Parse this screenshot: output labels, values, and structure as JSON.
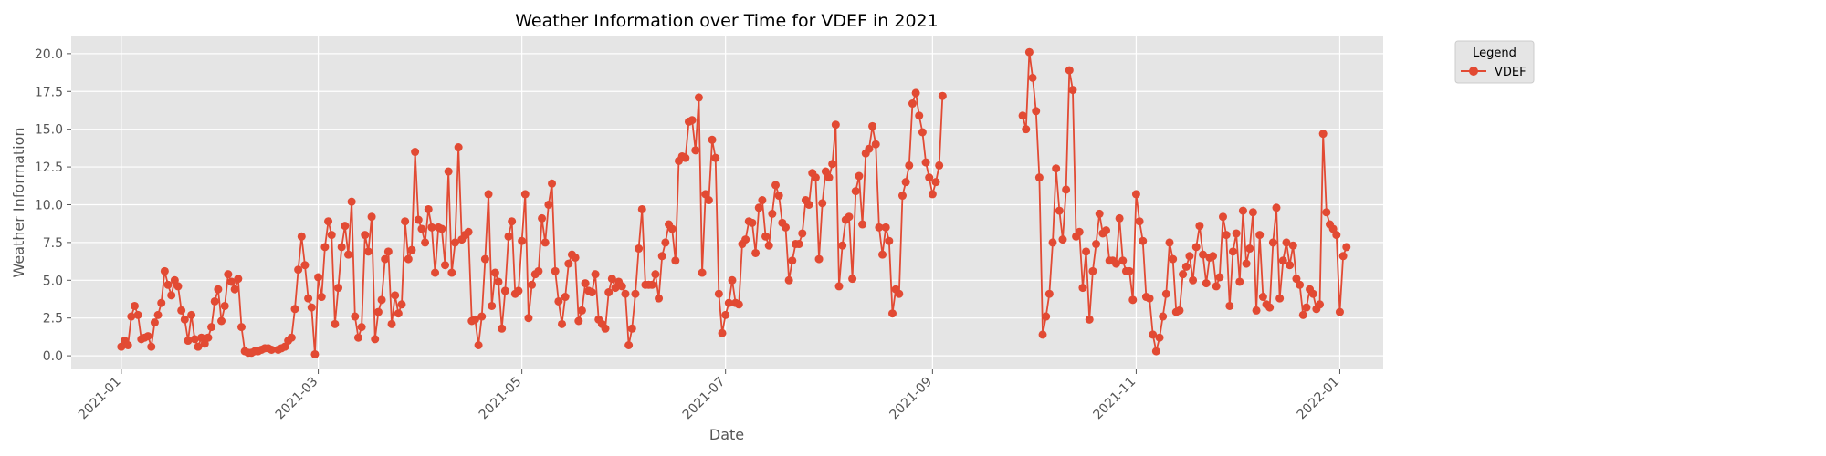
{
  "chart_data": {
    "type": "line",
    "title": "Weather Information over Time for VDEF in 2021",
    "xlabel": "Date",
    "ylabel": "Weather Information",
    "xlim": [
      "2020-12-17",
      "2022-01-14"
    ],
    "ylim": [
      -0.9,
      21.2
    ],
    "x_ticks": [
      "2021-01-01",
      "2021-03-01",
      "2021-05-01",
      "2021-07-01",
      "2021-09-01",
      "2021-11-01",
      "2022-01-01"
    ],
    "x_tick_labels": [
      "2021-01",
      "2021-03",
      "2021-05",
      "2021-07",
      "2021-09",
      "2021-11",
      "2022-01"
    ],
    "y_ticks": [
      0.0,
      2.5,
      5.0,
      7.5,
      10.0,
      12.5,
      15.0,
      17.5,
      20.0
    ],
    "y_tick_labels": [
      "0.0",
      "2.5",
      "5.0",
      "7.5",
      "10.0",
      "12.5",
      "15.0",
      "17.5",
      "20.0"
    ],
    "grid": true,
    "legend_title": "Legend",
    "legend_placement": "outside-top-right",
    "series": [
      {
        "name": "VDEF",
        "color": "#E24A33",
        "marker": "circle",
        "start_date": "2021-01-01",
        "values": [
          0.6,
          1.0,
          0.7,
          2.6,
          3.3,
          2.7,
          1.1,
          1.2,
          1.3,
          0.6,
          2.2,
          2.7,
          3.5,
          5.6,
          4.7,
          4.0,
          5.0,
          4.6,
          3.0,
          2.4,
          1.0,
          2.7,
          1.1,
          0.6,
          1.2,
          0.8,
          1.2,
          1.9,
          3.6,
          4.4,
          2.3,
          3.3,
          5.4,
          4.9,
          4.4,
          5.1,
          1.9,
          0.3,
          0.2,
          0.2,
          0.3,
          0.3,
          0.4,
          0.5,
          0.5,
          0.4,
          null,
          0.4,
          0.5,
          0.6,
          1.0,
          1.2,
          3.1,
          5.7,
          7.9,
          6.0,
          3.8,
          3.2,
          0.1,
          5.2,
          3.9,
          7.2,
          8.9,
          8.0,
          2.1,
          4.5,
          7.2,
          8.6,
          6.7,
          10.2,
          2.6,
          1.2,
          1.9,
          8.0,
          6.9,
          9.2,
          1.1,
          2.9,
          3.7,
          6.4,
          6.9,
          2.1,
          4.0,
          2.8,
          3.4,
          8.9,
          6.4,
          7.0,
          13.5,
          9.0,
          8.4,
          7.5,
          9.7,
          8.5,
          5.5,
          8.5,
          8.4,
          6.0,
          12.2,
          5.5,
          7.5,
          13.8,
          7.7,
          8.0,
          8.2,
          2.3,
          2.4,
          0.7,
          2.6,
          6.4,
          10.7,
          3.3,
          5.5,
          4.9,
          1.8,
          4.3,
          7.9,
          8.9,
          4.1,
          4.3,
          7.6,
          10.7,
          2.5,
          4.7,
          5.4,
          5.6,
          9.1,
          7.5,
          10.0,
          11.4,
          5.6,
          3.6,
          2.1,
          3.9,
          6.1,
          6.7,
          6.5,
          2.3,
          3.0,
          4.8,
          4.3,
          4.2,
          5.4,
          2.4,
          2.1,
          1.8,
          4.2,
          5.1,
          4.5,
          4.9,
          4.6,
          4.1,
          0.7,
          1.8,
          4.1,
          7.1,
          9.7,
          4.7,
          4.7,
          4.7,
          5.4,
          3.8,
          6.6,
          7.5,
          8.7,
          8.4,
          6.3,
          12.9,
          13.2,
          13.1,
          15.5,
          15.6,
          13.6,
          17.1,
          5.5,
          10.7,
          10.3,
          14.3,
          13.1,
          4.1,
          1.5,
          2.7,
          3.5,
          5.0,
          3.5,
          3.4,
          7.4,
          7.7,
          8.9,
          8.8,
          6.8,
          9.8,
          10.3,
          7.9,
          7.3,
          9.4,
          11.3,
          10.6,
          8.8,
          8.5,
          5.0,
          6.3,
          7.4,
          7.4,
          8.1,
          10.3,
          10.0,
          12.1,
          11.8,
          6.4,
          10.1,
          12.2,
          11.8,
          12.7,
          15.3,
          4.6,
          7.3,
          9.0,
          9.2,
          5.1,
          10.9,
          11.9,
          8.7,
          13.4,
          13.7,
          15.2,
          14.0,
          8.5,
          6.7,
          8.5,
          7.6,
          2.8,
          4.4,
          4.1,
          10.6,
          11.5,
          12.6,
          16.7,
          17.4,
          15.9,
          14.8,
          12.8,
          11.8,
          10.7,
          11.5,
          12.6,
          17.2,
          null,
          null,
          null,
          null,
          null,
          null,
          null,
          null,
          null,
          null,
          null,
          null,
          null,
          null,
          null,
          null,
          null,
          null,
          null,
          null,
          null,
          null,
          null,
          15.9,
          15.0,
          20.1,
          18.4,
          16.2,
          11.8,
          1.4,
          2.6,
          4.1,
          7.5,
          12.4,
          9.6,
          7.7,
          11.0,
          18.9,
          17.6,
          7.9,
          8.2,
          4.5,
          6.9,
          2.4,
          5.6,
          7.4,
          9.4,
          8.1,
          8.3,
          6.3,
          6.3,
          6.1,
          9.1,
          6.3,
          5.6,
          5.6,
          3.7,
          10.7,
          8.9,
          7.6,
          3.9,
          3.8,
          1.4,
          0.3,
          1.2,
          2.6,
          4.1,
          7.5,
          6.4,
          2.9,
          3.0,
          5.4,
          5.9,
          6.6,
          5.0,
          7.2,
          8.6,
          6.7,
          4.8,
          6.5,
          6.6,
          4.6,
          5.2,
          9.2,
          8.0,
          3.3,
          6.9,
          8.1,
          4.9,
          9.6,
          6.1,
          7.1,
          9.5,
          3.0,
          8.0,
          3.9,
          3.4,
          3.2,
          7.5,
          9.8,
          3.8,
          6.3,
          7.5,
          6.0,
          7.3,
          5.1,
          4.7,
          2.7,
          3.2,
          4.4,
          4.1,
          3.1,
          3.4,
          14.7,
          9.5,
          8.7,
          8.4,
          8.0,
          2.9,
          6.6,
          7.2
        ]
      }
    ]
  }
}
